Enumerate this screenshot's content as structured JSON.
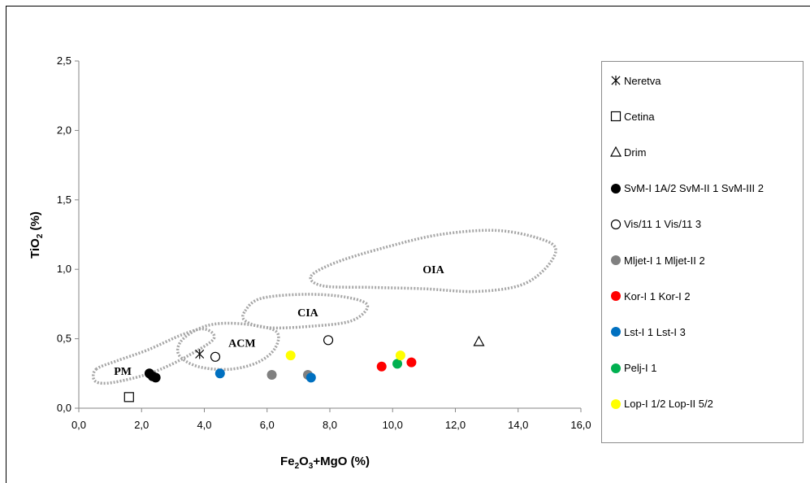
{
  "chart_data": {
    "type": "scatter",
    "xlabel": {
      "a": "Fe",
      "s1": "2",
      "b": "O",
      "s2": "3",
      "c": "+MgO (%)"
    },
    "ylabel": {
      "a": "TiO",
      "s": "2",
      "b": " (%)"
    },
    "xlim": [
      0,
      16
    ],
    "ylim": [
      0,
      2.5
    ],
    "x_ticks": [
      0,
      2,
      4,
      6,
      8,
      10,
      12,
      14,
      16
    ],
    "y_ticks": [
      0,
      0.5,
      1,
      1.5,
      2,
      2.5
    ],
    "x_tick_labels": [
      "0,0",
      "2,0",
      "4,0",
      "6,0",
      "8,0",
      "10,0",
      "12,0",
      "14,0",
      "16,0"
    ],
    "y_tick_labels": [
      "0,0",
      "0,5",
      "1,0",
      "1,5",
      "2,0",
      "2,5"
    ],
    "grid": false,
    "legend_position": "right",
    "regions": [
      {
        "name": "PM",
        "label_at": [
          1.4,
          0.27
        ],
        "outline": [
          [
            0.55,
            0.28
          ],
          [
            1.2,
            0.34
          ],
          [
            2.2,
            0.42
          ],
          [
            3.3,
            0.53
          ],
          [
            4.0,
            0.57
          ],
          [
            4.3,
            0.5
          ],
          [
            3.5,
            0.38
          ],
          [
            2.6,
            0.28
          ],
          [
            1.8,
            0.22
          ],
          [
            0.9,
            0.18
          ],
          [
            0.5,
            0.2
          ]
        ]
      },
      {
        "name": "ACM",
        "label_at": [
          5.2,
          0.47
        ],
        "outline": [
          [
            3.25,
            0.48
          ],
          [
            3.8,
            0.57
          ],
          [
            4.5,
            0.61
          ],
          [
            5.5,
            0.6
          ],
          [
            6.3,
            0.55
          ],
          [
            6.25,
            0.43
          ],
          [
            5.7,
            0.33
          ],
          [
            4.8,
            0.28
          ],
          [
            3.8,
            0.3
          ],
          [
            3.2,
            0.38
          ]
        ]
      },
      {
        "name": "CIA",
        "label_at": [
          7.3,
          0.69
        ],
        "outline": [
          [
            5.3,
            0.7
          ],
          [
            5.8,
            0.79
          ],
          [
            7.2,
            0.82
          ],
          [
            8.5,
            0.8
          ],
          [
            9.2,
            0.74
          ],
          [
            8.7,
            0.63
          ],
          [
            7.4,
            0.59
          ],
          [
            6.0,
            0.58
          ],
          [
            5.3,
            0.63
          ]
        ]
      },
      {
        "name": "OIA",
        "label_at": [
          11.3,
          1.0
        ],
        "outline": [
          [
            7.4,
            0.95
          ],
          [
            8.2,
            1.05
          ],
          [
            9.8,
            1.16
          ],
          [
            11.5,
            1.25
          ],
          [
            13.3,
            1.28
          ],
          [
            14.7,
            1.22
          ],
          [
            15.2,
            1.14
          ],
          [
            14.8,
            0.99
          ],
          [
            14.0,
            0.88
          ],
          [
            12.6,
            0.84
          ],
          [
            11.0,
            0.86
          ],
          [
            9.3,
            0.87
          ],
          [
            7.8,
            0.88
          ]
        ]
      }
    ],
    "series": [
      {
        "name": "Neretva",
        "marker": "asterisk",
        "color": "#000000",
        "points": [
          [
            3.85,
            0.39
          ]
        ]
      },
      {
        "name": "Cetina",
        "marker": "square",
        "color": "#000000",
        "points": [
          [
            1.6,
            0.08
          ]
        ]
      },
      {
        "name": "Drim",
        "marker": "triangle",
        "color": "#000000",
        "points": [
          [
            12.75,
            0.48
          ]
        ]
      },
      {
        "name": "SvM-I 1A/2 SvM-II 1 SvM-III 2",
        "marker": "filled-circle",
        "color": "#000000",
        "points": [
          [
            2.25,
            0.25
          ],
          [
            2.35,
            0.23
          ],
          [
            2.45,
            0.22
          ]
        ]
      },
      {
        "name": "Vis/11 1 Vis/11 3",
        "marker": "open-circle",
        "color": "#000000",
        "points": [
          [
            4.35,
            0.37
          ],
          [
            7.95,
            0.49
          ]
        ]
      },
      {
        "name": "Mljet-I 1 Mljet-II 2",
        "marker": "filled-circle",
        "color": "#808080",
        "points": [
          [
            6.15,
            0.24
          ],
          [
            7.3,
            0.24
          ]
        ]
      },
      {
        "name": "Kor-I 1 Kor-I 2",
        "marker": "filled-circle",
        "color": "#ff0000",
        "points": [
          [
            9.65,
            0.3
          ],
          [
            10.6,
            0.33
          ]
        ]
      },
      {
        "name": "Lst-I 1 Lst-I 3",
        "marker": "filled-circle",
        "color": "#0070c0",
        "points": [
          [
            4.5,
            0.25
          ],
          [
            7.4,
            0.22
          ]
        ]
      },
      {
        "name": "Pelj-I 1",
        "marker": "filled-circle",
        "color": "#00b050",
        "points": [
          [
            10.15,
            0.32
          ]
        ]
      },
      {
        "name": "Lop-I 1/2 Lop-II 5/2",
        "marker": "filled-circle",
        "color": "#ffff00",
        "points": [
          [
            6.75,
            0.38
          ],
          [
            10.25,
            0.38
          ]
        ]
      }
    ]
  }
}
